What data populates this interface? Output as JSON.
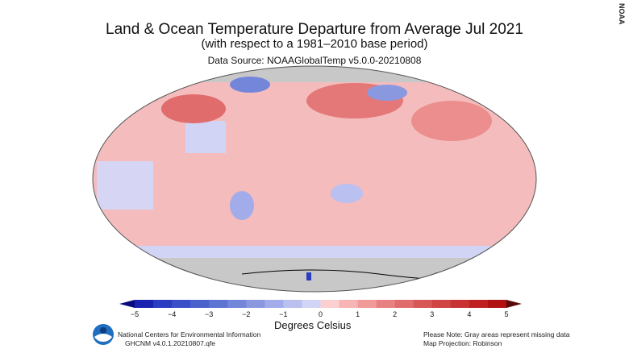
{
  "header": {
    "title": "Land & Ocean Temperature Departure from Average Jul 2021",
    "subtitle": "(with respect to a 1981–2010 base period)",
    "source": "Data Source: NOAAGlobalTemp v5.0.0-20210808"
  },
  "watermark": "NOAA",
  "legend": {
    "label": "Degrees Celsius",
    "ticks": [
      "−5",
      "−4",
      "−3",
      "−2",
      "−1",
      "0",
      "1",
      "2",
      "3",
      "4",
      "5"
    ],
    "colors": [
      "#1a23b0",
      "#2a3cc0",
      "#3a50c8",
      "#4a62cc",
      "#5e74d2",
      "#7486da",
      "#8a98e0",
      "#a2acea",
      "#bac0f0",
      "#d2d4f6",
      "#fbd0d0",
      "#f6b4b4",
      "#f09a9a",
      "#e88282",
      "#e06c6c",
      "#d85656",
      "#d04444",
      "#c83232",
      "#c02020",
      "#b01212"
    ],
    "low_color": "#0a0a80",
    "high_color": "#5a0a0a",
    "missing_color": "#c8c8c8"
  },
  "footer": {
    "org": "National Centers for Environmental Information",
    "dataset": "GHCNM v4.0.1.20210807.qfe",
    "note": "Please Note: Gray areas represent missing data",
    "projection": "Map Projection: Robinson"
  },
  "map": {
    "projection": "Robinson",
    "base_color": "#f4bcbc"
  }
}
